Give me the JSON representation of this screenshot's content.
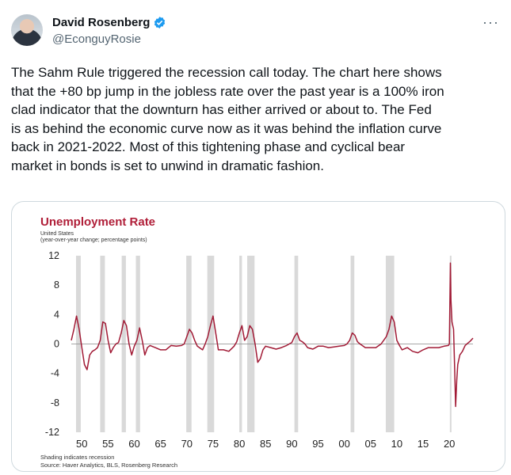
{
  "tweet": {
    "display_name": "David Rosenberg",
    "handle": "@EconguyRosie",
    "text": "The Sahm Rule triggered the recession call today.  The chart here shows\nthat the +80 bp jump in the jobless rate over the past year is a 100% iron\nclad indicator that the downturn has either arrived or about to.  The Fed\nis as behind the economic curve now as it was behind the inflation curve\nback in 2021-2022.  Most of this tightening phase and cyclical bear\nmarket in bonds is set to unwind in dramatic fashion."
  },
  "icons": {
    "verified": "verified-badge-icon",
    "more": "more-options-icon",
    "avatar": "avatar"
  },
  "colors": {
    "verified": "#1d9bf0",
    "line": "#a11a35",
    "title": "#b01e38",
    "shade": "#d9d9d9"
  },
  "chart_data": {
    "type": "line",
    "title": "Unemployment Rate",
    "subtitle_1": "United States",
    "subtitle_2": "(year-over-year change; percentage points)",
    "footnote_1": "Shading indicates recession",
    "footnote_2": "Source: Haver Analytics, BLS, Rosenberg Research",
    "xlim": [
      1948,
      2024.5
    ],
    "ylim": [
      -12,
      12
    ],
    "yticks": [
      12,
      8,
      4,
      0,
      -4,
      -8,
      -12
    ],
    "xticks": [
      1950,
      1955,
      1960,
      1965,
      1970,
      1975,
      1980,
      1985,
      1990,
      1995,
      2000,
      2005,
      2010,
      2015,
      2020
    ],
    "xtick_labels": [
      "50",
      "55",
      "60",
      "65",
      "70",
      "75",
      "80",
      "85",
      "90",
      "95",
      "00",
      "05",
      "10",
      "15",
      "20"
    ],
    "recessions": [
      [
        1948.9,
        1949.8
      ],
      [
        1953.5,
        1954.4
      ],
      [
        1957.6,
        1958.4
      ],
      [
        1960.3,
        1961.1
      ],
      [
        1969.9,
        1970.9
      ],
      [
        1973.9,
        1975.2
      ],
      [
        1980.0,
        1980.5
      ],
      [
        1981.5,
        1982.9
      ],
      [
        1990.5,
        1991.2
      ],
      [
        2001.2,
        2001.9
      ],
      [
        2007.9,
        2009.5
      ],
      [
        2020.1,
        2020.4
      ]
    ],
    "series": [
      {
        "x": [
          1948.0,
          1948.5,
          1949.0,
          1949.5,
          1950.0,
          1950.5,
          1951.0,
          1951.5,
          1952.0,
          1952.5,
          1953.0,
          1953.5,
          1954.0,
          1954.5,
          1955.0,
          1955.5,
          1956.0,
          1956.5,
          1957.0,
          1957.5,
          1958.0,
          1958.5,
          1959.0,
          1959.5,
          1960.0,
          1960.5,
          1961.0,
          1961.5,
          1962.0,
          1962.5,
          1963.0,
          1964.0,
          1965.0,
          1966.0,
          1967.0,
          1968.0,
          1969.0,
          1969.5,
          1970.0,
          1970.5,
          1971.0,
          1971.5,
          1972.0,
          1973.0,
          1973.5,
          1974.0,
          1974.5,
          1975.0,
          1975.5,
          1976.0,
          1977.0,
          1978.0,
          1979.0,
          1979.5,
          1980.0,
          1980.5,
          1981.0,
          1981.5,
          1982.0,
          1982.5,
          1983.0,
          1983.5,
          1984.0,
          1984.5,
          1985.0,
          1986.0,
          1987.0,
          1988.0,
          1989.0,
          1990.0,
          1990.5,
          1991.0,
          1991.5,
          1992.0,
          1992.5,
          1993.0,
          1994.0,
          1995.0,
          1996.0,
          1997.0,
          1998.0,
          1999.0,
          2000.0,
          2000.5,
          2001.0,
          2001.5,
          2002.0,
          2002.5,
          2003.0,
          2004.0,
          2005.0,
          2006.0,
          2007.0,
          2007.5,
          2008.0,
          2008.5,
          2009.0,
          2009.5,
          2010.0,
          2010.5,
          2011.0,
          2012.0,
          2013.0,
          2014.0,
          2015.0,
          2016.0,
          2017.0,
          2018.0,
          2019.0,
          2019.8,
          2020.0,
          2020.2,
          2020.3,
          2020.5,
          2020.8,
          2021.0,
          2021.2,
          2021.4,
          2021.6,
          2022.0,
          2022.5,
          2023.0,
          2023.5,
          2024.0,
          2024.5
        ],
        "y": [
          0.5,
          2.0,
          3.8,
          2.0,
          -0.5,
          -2.8,
          -3.5,
          -1.5,
          -1.0,
          -0.8,
          -0.5,
          0.5,
          3.0,
          2.8,
          0.5,
          -1.2,
          -0.5,
          0.0,
          0.2,
          1.5,
          3.2,
          2.5,
          0.0,
          -1.5,
          -0.3,
          0.5,
          2.2,
          0.5,
          -1.5,
          -0.5,
          -0.2,
          -0.5,
          -0.8,
          -0.8,
          -0.2,
          -0.3,
          -0.2,
          0.0,
          1.0,
          2.0,
          1.5,
          0.5,
          -0.3,
          -0.8,
          0.0,
          1.0,
          2.5,
          3.8,
          1.5,
          -0.8,
          -0.8,
          -1.0,
          -0.3,
          0.3,
          1.5,
          2.5,
          0.5,
          1.0,
          2.5,
          2.0,
          0.0,
          -2.5,
          -2.0,
          -0.8,
          -0.3,
          -0.5,
          -0.7,
          -0.5,
          -0.2,
          0.2,
          1.0,
          1.5,
          0.5,
          0.3,
          0.0,
          -0.5,
          -0.7,
          -0.3,
          -0.3,
          -0.5,
          -0.4,
          -0.3,
          -0.2,
          0.0,
          0.5,
          1.5,
          1.2,
          0.3,
          0.0,
          -0.5,
          -0.5,
          -0.5,
          0.0,
          0.5,
          1.0,
          2.0,
          3.8,
          3.0,
          0.5,
          -0.2,
          -0.8,
          -0.5,
          -1.0,
          -1.2,
          -0.8,
          -0.5,
          -0.5,
          -0.5,
          -0.3,
          -0.2,
          0.0,
          11.0,
          6.0,
          3.0,
          2.0,
          -3.0,
          -8.5,
          -5.0,
          -2.8,
          -1.5,
          -1.0,
          -0.2,
          0.1,
          0.4,
          0.8
        ]
      }
    ]
  }
}
